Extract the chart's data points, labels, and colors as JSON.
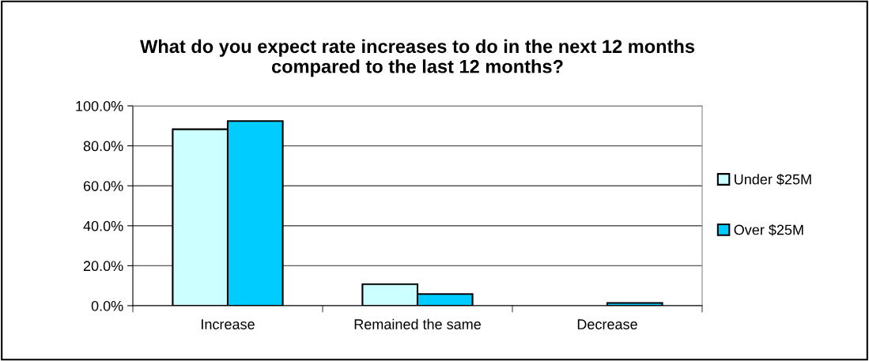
{
  "chart_data": {
    "type": "bar",
    "title": "What do you expect rate increases to do in the next 12 months\ncompared to the last 12 months?",
    "categories": [
      "Increase",
      "Remained the same",
      "Decrease"
    ],
    "series": [
      {
        "name": "Under $25M",
        "color": "#ccffff",
        "values": [
          88.3,
          10.8,
          0
        ]
      },
      {
        "name": "Over $25M",
        "color": "#00ccff",
        "values": [
          92.4,
          5.8,
          1.4
        ]
      }
    ],
    "ylim": [
      0,
      100
    ],
    "yticks": [
      {
        "value": 0,
        "label": "0.0%"
      },
      {
        "value": 20,
        "label": "20.0%"
      },
      {
        "value": 40,
        "label": "40.0%"
      },
      {
        "value": 60,
        "label": "60.0%"
      },
      {
        "value": 80,
        "label": "80.0%"
      },
      {
        "value": 100,
        "label": "100.0%"
      }
    ],
    "grid": "y",
    "legend": "right"
  }
}
